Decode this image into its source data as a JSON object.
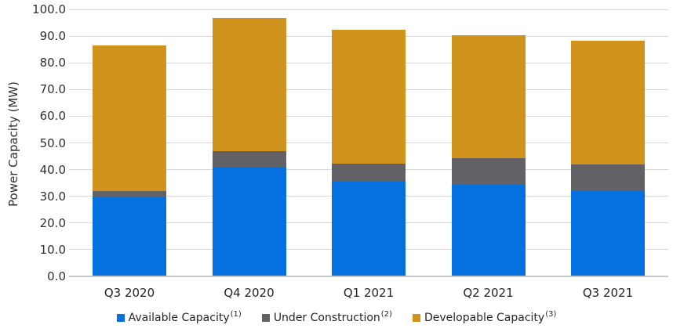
{
  "chart_data": {
    "type": "bar",
    "stacked": true,
    "title": "",
    "xlabel": "",
    "ylabel": "Power Capacity (MW)",
    "ylim": [
      0,
      100
    ],
    "ytick_step": 10,
    "ytick_labels": [
      "0.0",
      "10.0",
      "20.0",
      "30.0",
      "40.0",
      "50.0",
      "60.0",
      "70.0",
      "80.0",
      "90.0",
      "100.0"
    ],
    "grid": "horizontal",
    "legend_position": "bottom",
    "categories": [
      "Q3 2020",
      "Q4 2020",
      "Q1 2021",
      "Q2 2021",
      "Q3 2021"
    ],
    "series": [
      {
        "name": "Available Capacity",
        "sup": "(1)",
        "color": "#0571e0",
        "values": [
          29.2,
          40.4,
          35.6,
          34.1,
          31.8
        ]
      },
      {
        "name": "Under Construction",
        "sup": "(2)",
        "color": "#616166",
        "values": [
          2.6,
          6.2,
          6.4,
          9.9,
          9.8
        ]
      },
      {
        "name": "Developable Capacity",
        "sup": "(3)",
        "color": "#d0941e",
        "values": [
          54.3,
          50.0,
          50.0,
          46.0,
          46.4
        ]
      }
    ],
    "stack_totals": [
      86.1,
      96.6,
      92.0,
      90.0,
      88.0
    ],
    "colors": {
      "gridline": "#d9d9d9",
      "axis_line": "#c6c6c6",
      "tick_text": "#303030",
      "category_text": "#262626"
    }
  }
}
